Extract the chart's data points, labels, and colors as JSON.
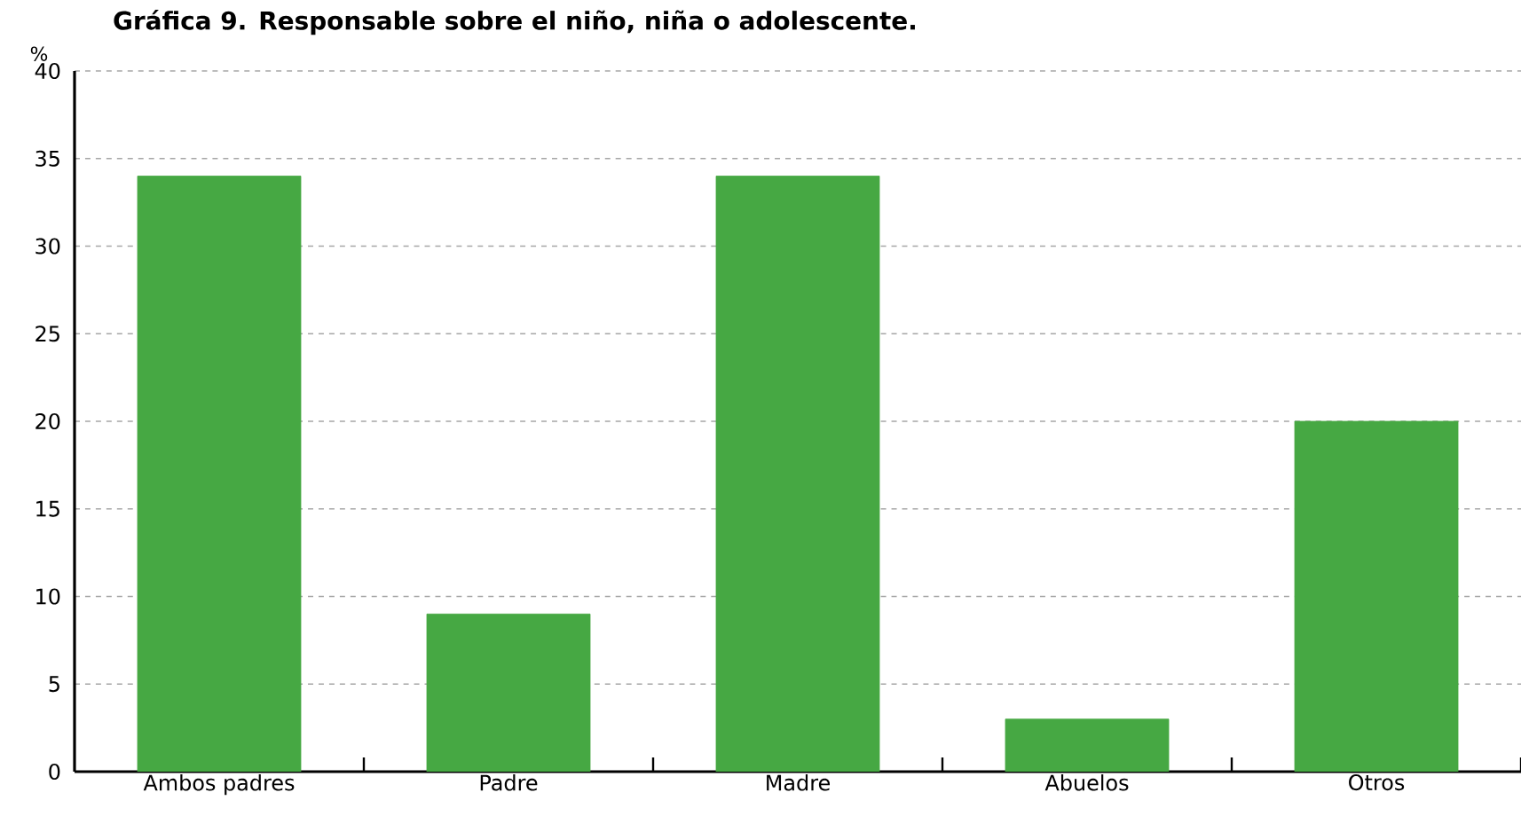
{
  "chart_data": {
    "type": "bar",
    "title": "Gráfica 9. Responsable sobre el niño, niña o adolescente.",
    "ylabel": "%",
    "categories": [
      "Ambos padres",
      "Padre",
      "Madre",
      "Abuelos",
      "Otros"
    ],
    "values": [
      34,
      9,
      34,
      3,
      20
    ],
    "color": "#46a843",
    "ylim": [
      0,
      40
    ],
    "yticks": [
      0,
      5,
      10,
      15,
      20,
      25,
      30,
      35,
      40
    ],
    "grid": "y"
  }
}
